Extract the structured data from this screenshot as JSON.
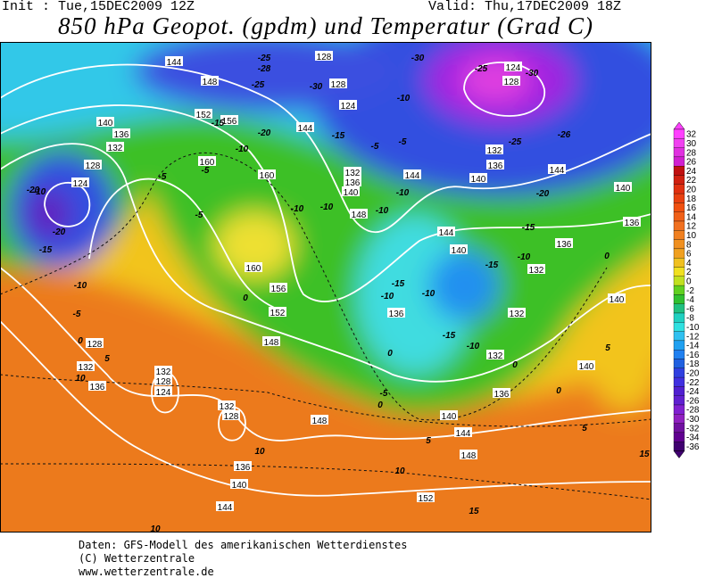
{
  "header": {
    "init": "Init : Tue,15DEC2009 12Z",
    "valid": "Valid: Thu,17DEC2009 18Z",
    "title": "850 hPa Geopot. (gpdm) und Temperatur (Grad C)"
  },
  "legend": {
    "values": [
      32,
      30,
      28,
      26,
      24,
      22,
      20,
      18,
      16,
      14,
      12,
      10,
      8,
      6,
      4,
      2,
      0,
      -2,
      -4,
      -6,
      -8,
      -10,
      -12,
      -14,
      -16,
      -18,
      -20,
      -22,
      -24,
      -26,
      -28,
      -30,
      -32,
      -34,
      -36
    ],
    "colors": [
      "#ff40ff",
      "#f040f0",
      "#e030e0",
      "#d020d0",
      "#c01010",
      "#d02010",
      "#e03010",
      "#e84010",
      "#f05010",
      "#f06018",
      "#f07020",
      "#f08020",
      "#f09020",
      "#f0a020",
      "#f0c020",
      "#f0e020",
      "#c0e020",
      "#60d020",
      "#30c030",
      "#20c080",
      "#20d0c0",
      "#30e0e0",
      "#30c0f0",
      "#20a0f0",
      "#2080f0",
      "#2060e0",
      "#3040e0",
      "#4030e0",
      "#5020d0",
      "#6020d0",
      "#8020d0",
      "#9020c0",
      "#7010a0",
      "#600090",
      "#400070"
    ]
  },
  "map": {
    "height_labels": [
      144,
      148,
      152,
      156,
      160,
      160,
      160,
      156,
      152,
      148,
      128,
      128,
      124,
      144,
      132,
      136,
      140,
      148,
      144,
      140,
      136,
      132,
      124,
      128,
      144,
      140,
      136,
      136,
      132,
      132,
      140,
      144,
      140,
      140,
      136,
      140,
      132,
      128,
      124,
      128,
      132,
      136,
      132,
      128,
      124,
      132,
      128,
      136,
      140,
      144,
      148,
      144,
      148,
      152,
      140,
      136,
      132,
      136
    ],
    "temp_labels": [
      -30,
      -25,
      -28,
      -25,
      -30,
      -25,
      -30,
      -26,
      -25,
      -20,
      -15,
      -20,
      -15,
      -10,
      -5,
      -5,
      -5,
      -10,
      -10,
      -10,
      -10,
      -5,
      -5,
      -10,
      -15,
      -15,
      -10,
      -10,
      -20,
      -20,
      -15,
      -10,
      -5,
      0,
      -10,
      -15,
      -10,
      -15,
      -10,
      0,
      -5,
      0,
      5,
      5,
      10,
      10,
      15,
      10,
      5,
      10,
      5,
      0,
      0,
      0,
      0,
      15
    ]
  },
  "footer": {
    "line1": "Daten: GFS-Modell des amerikanischen Wetterdienstes",
    "line2": "(C) Wetterzentrale",
    "line3": "www.wetterzentrale.de"
  }
}
